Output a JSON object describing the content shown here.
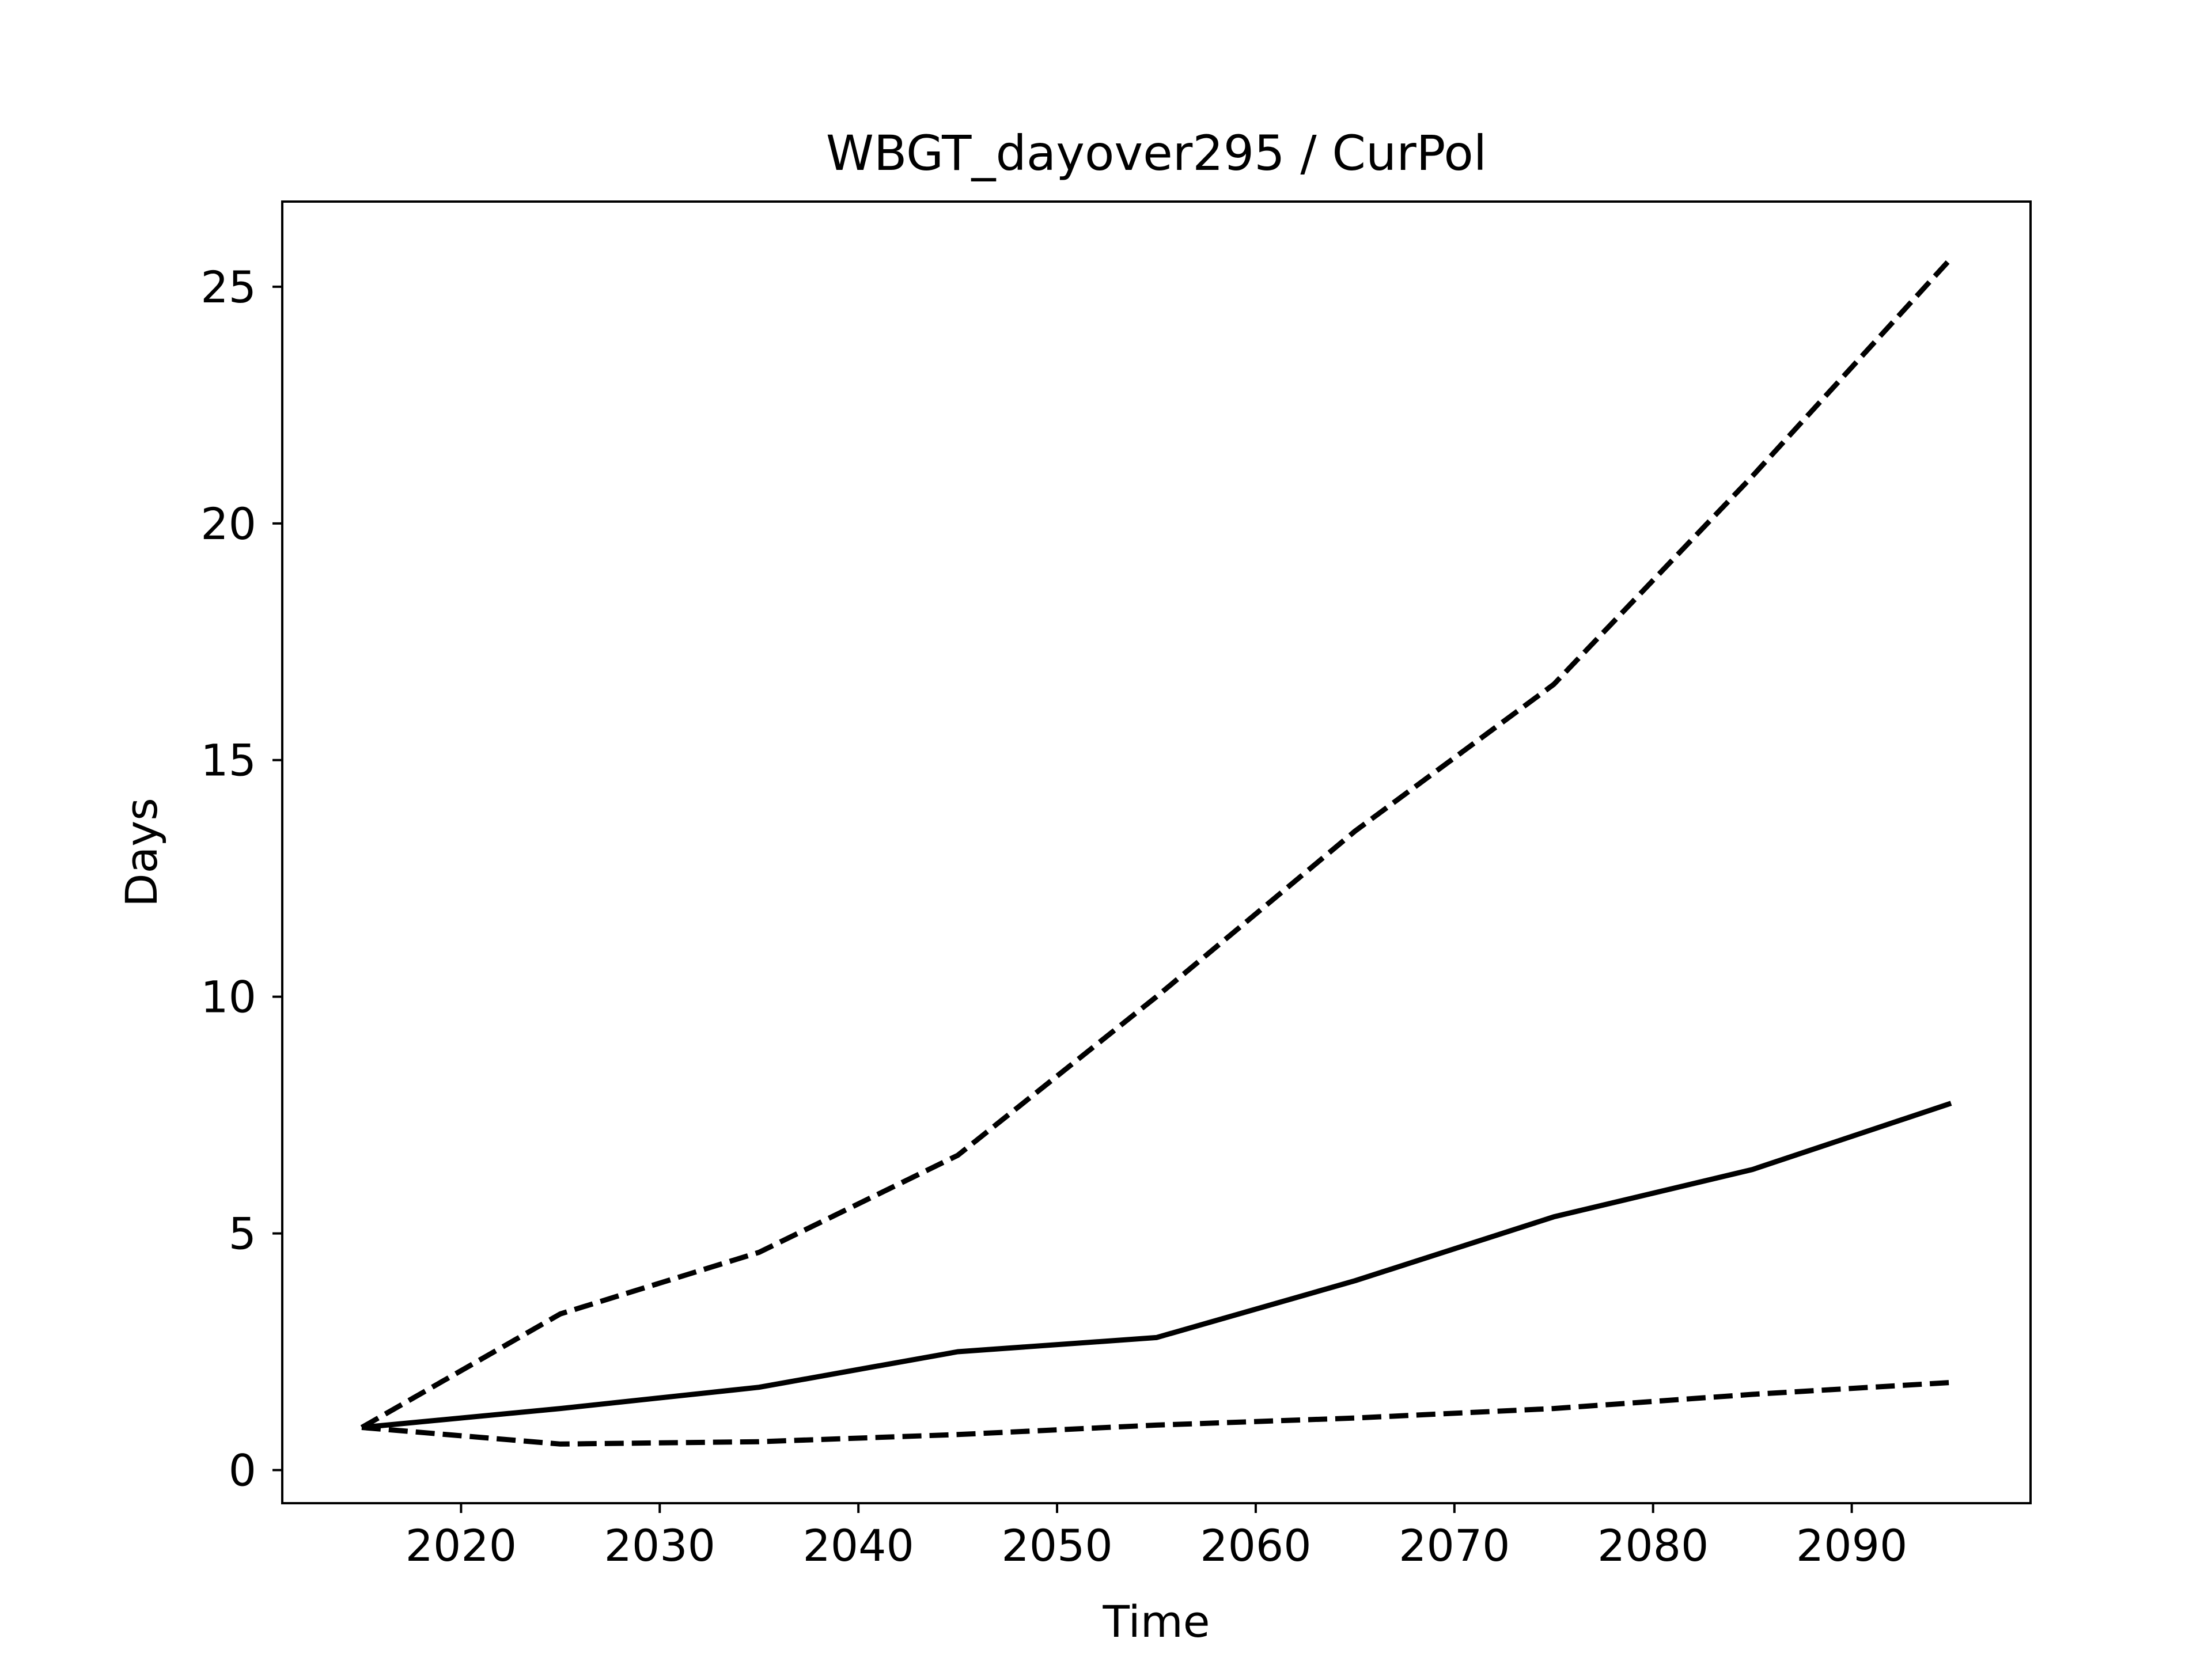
{
  "chart_data": {
    "type": "line",
    "title": "WBGT_dayover295 / CurPol",
    "xlabel": "Time",
    "ylabel": "Days",
    "xlim": [
      2011,
      2099
    ],
    "ylim": [
      -0.7,
      26.8
    ],
    "xticks": [
      2020,
      2030,
      2040,
      2050,
      2060,
      2070,
      2080,
      2090
    ],
    "yticks": [
      0,
      5,
      10,
      15,
      20,
      25
    ],
    "grid": false,
    "line_color": "#000000",
    "x": [
      2015,
      2025,
      2035,
      2045,
      2055,
      2065,
      2075,
      2085,
      2095
    ],
    "series": [
      {
        "style": "solid",
        "values": [
          0.9,
          1.3,
          1.75,
          2.5,
          2.8,
          4.0,
          5.35,
          6.35,
          7.75
        ]
      },
      {
        "style": "dashed",
        "values": [
          0.9,
          3.3,
          4.6,
          6.65,
          10.0,
          13.5,
          16.6,
          21.0,
          25.6
        ]
      },
      {
        "style": "dashed",
        "values": [
          0.9,
          0.55,
          0.6,
          0.75,
          0.95,
          1.1,
          1.3,
          1.6,
          1.85
        ]
      }
    ]
  }
}
